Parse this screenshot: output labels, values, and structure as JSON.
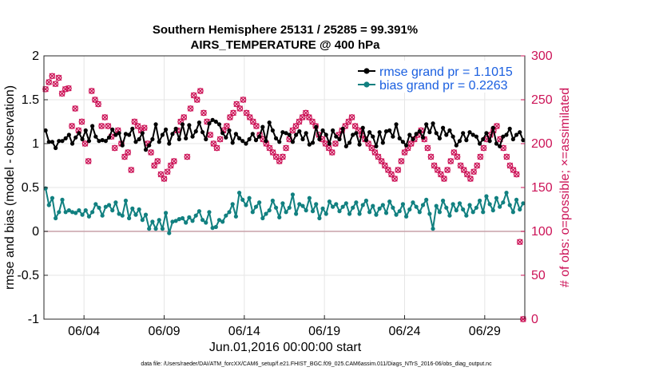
{
  "chart_data": {
    "type": "line",
    "title_line1": "Southern Hemisphere 25131 / 25285 = 99.391%",
    "title_line2": "AIRS_TEMPERATURE @ 400 hPa",
    "xlabel": "Jun.01,2016 00:00:00 start",
    "ylabel_left": "rmse and bias (model - observation)",
    "ylabel_right": "# of obs: o=possible; ×=assimilated",
    "footer": "data file: /Users/raeder/DAI/ATM_forcXX/CAM6_setup/f.e21.FHIST_BGC.f09_025.CAM6assim.011/Diags_NTrS_2016-06/obs_diag_output.nc",
    "x_ticks": [
      {
        "day": 4,
        "label": "06/04"
      },
      {
        "day": 9,
        "label": "06/09"
      },
      {
        "day": 14,
        "label": "06/14"
      },
      {
        "day": 19,
        "label": "06/19"
      },
      {
        "day": 24,
        "label": "06/24"
      },
      {
        "day": 29,
        "label": "06/29"
      }
    ],
    "xlim": [
      1.5,
      31.5
    ],
    "ylim_left": [
      -1,
      2
    ],
    "ylim_right": [
      0,
      300
    ],
    "y_ticks_left": [
      "-1",
      "-0.5",
      "0",
      "0.5",
      "1",
      "1.5",
      "2"
    ],
    "y_ticks_right": [
      "0",
      "50",
      "100",
      "150",
      "200",
      "250",
      "300"
    ],
    "grid": true,
    "legend_position": "top-right",
    "colors": {
      "rmse": "#000000",
      "bias": "#118080",
      "obs": "#cc1357",
      "zero_line": "#c8a0a8",
      "grid": "#e6e6e6"
    },
    "series": [
      {
        "name": "rmse grand pr = 1.1015",
        "color": "#000000",
        "values": [
          1.15,
          1.02,
          1.02,
          0.95,
          1.03,
          1.03,
          1.06,
          1.1,
          1.0,
          1.07,
          1.12,
          1.05,
          1.15,
          1.03,
          1.2,
          1.08,
          1.03,
          1.04,
          1.03,
          1.07,
          1.16,
          1.1,
          1.12,
          0.98,
          1.11,
          1.1,
          1.17,
          1.02,
          1.05,
          1.12,
          0.93,
          0.98,
          1.05,
          1.22,
          1.02,
          1.1,
          1.16,
          1.0,
          1.11,
          1.17,
          1.05,
          1.22,
          1.06,
          1.21,
          1.08,
          1.14,
          1.24,
          1.13,
          1.05,
          1.23,
          1.27,
          1.25,
          1.22,
          1.12,
          1.07,
          1.15,
          1.01,
          1.11,
          1.06,
          1.03,
          1.0,
          1.05,
          1.11,
          1.04,
          1.08,
          1.19,
          1.03,
          1.24,
          1.15,
          1.06,
          1.02,
          1.13,
          1.12,
          1.1,
          1.02,
          1.1,
          1.14,
          1.05,
          1.12,
          0.99,
          1.01,
          1.19,
          1.05,
          1.15,
          1.1,
          1.0,
          1.15,
          1.08,
          1.05,
          1.17,
          0.97,
          1.01,
          1.1,
          1.12,
          0.99,
          1.18,
          1.04,
          1.13,
          1.08,
          0.97,
          1.13,
          1.01,
          1.14,
          1.15,
          1.08,
          1.22,
          1.06,
          1.02,
          0.98,
          1.1,
          1.05,
          1.11,
          1.14,
          1.07,
          1.22,
          1.13,
          1.23,
          1.12,
          1.06,
          1.18,
          1.1,
          1.15,
          1.08,
          0.98,
          1.03,
          1.12,
          1.04,
          1.13,
          1.1,
          1.08,
          1.0,
          1.05,
          1.12,
          1.03,
          1.18,
          1.0,
          0.97,
          1.08,
          1.1,
          1.17,
          1.05,
          1.1,
          1.13,
          1.04
        ]
      },
      {
        "name": "bias grand pr = 0.2263",
        "color": "#118080",
        "values": [
          0.49,
          0.3,
          0.38,
          0.15,
          0.22,
          0.36,
          0.22,
          0.24,
          0.22,
          0.21,
          0.24,
          0.19,
          0.24,
          0.17,
          0.22,
          0.31,
          0.27,
          0.18,
          0.28,
          0.3,
          0.24,
          0.33,
          0.2,
          0.18,
          0.35,
          0.15,
          0.26,
          0.19,
          0.25,
          0.13,
          0.19,
          0.03,
          0.11,
          0.03,
          0.13,
          0.03,
          0.21,
          -0.02,
          0.11,
          0.12,
          0.14,
          0.15,
          0.1,
          0.16,
          0.12,
          0.18,
          0.23,
          0.13,
          0.1,
          0.22,
          0.04,
          0.05,
          0.13,
          0.11,
          0.18,
          0.22,
          0.31,
          0.17,
          0.44,
          0.36,
          0.3,
          0.38,
          0.22,
          0.28,
          0.33,
          0.15,
          0.2,
          0.24,
          0.35,
          0.27,
          0.16,
          0.32,
          0.22,
          0.27,
          0.42,
          0.2,
          0.31,
          0.29,
          0.24,
          0.38,
          0.23,
          0.31,
          0.15,
          0.26,
          0.2,
          0.34,
          0.28,
          0.31,
          0.23,
          0.28,
          0.32,
          0.2,
          0.27,
          0.33,
          0.2,
          0.3,
          0.35,
          0.22,
          0.29,
          0.19,
          0.26,
          0.3,
          0.21,
          0.34,
          0.27,
          0.19,
          0.23,
          0.31,
          0.17,
          0.25,
          0.33,
          0.28,
          0.22,
          0.3,
          0.36,
          0.2,
          0.03,
          0.29,
          0.22,
          0.35,
          0.27,
          0.18,
          0.31,
          0.24,
          0.32,
          0.25,
          0.18,
          0.3,
          0.22,
          0.27,
          0.35,
          0.22,
          0.4,
          0.31,
          0.24,
          0.38,
          0.28,
          0.33,
          0.44,
          0.3,
          0.22,
          0.36,
          0.25,
          0.32
        ]
      }
    ],
    "obs_counts": [
      262,
      270,
      277,
      268,
      275,
      257,
      262,
      263,
      220,
      240,
      215,
      225,
      200,
      180,
      260,
      250,
      245,
      220,
      230,
      220,
      208,
      195,
      215,
      200,
      185,
      190,
      170,
      225,
      220,
      215,
      218,
      200,
      190,
      175,
      180,
      165,
      160,
      168,
      175,
      180,
      215,
      225,
      230,
      185,
      240,
      255,
      250,
      260,
      235,
      225,
      210,
      200,
      195,
      205,
      215,
      220,
      230,
      235,
      245,
      240,
      250,
      235,
      230,
      225,
      220,
      210,
      205,
      200,
      195,
      190,
      185,
      180,
      185,
      195,
      205,
      215,
      220,
      225,
      230,
      235,
      230,
      225,
      220,
      210,
      205,
      200,
      195,
      190,
      200,
      210,
      215,
      220,
      225,
      230,
      220,
      215,
      210,
      205,
      200,
      195,
      190,
      185,
      180,
      175,
      170,
      165,
      160,
      170,
      180,
      190,
      195,
      200,
      205,
      210,
      215,
      205,
      195,
      185,
      175,
      170,
      165,
      160,
      170,
      180,
      190,
      185,
      175,
      170,
      165,
      160,
      168,
      175,
      185,
      195,
      205,
      210,
      215,
      220,
      205,
      195,
      185,
      175,
      170,
      165,
      88,
      0
    ]
  }
}
